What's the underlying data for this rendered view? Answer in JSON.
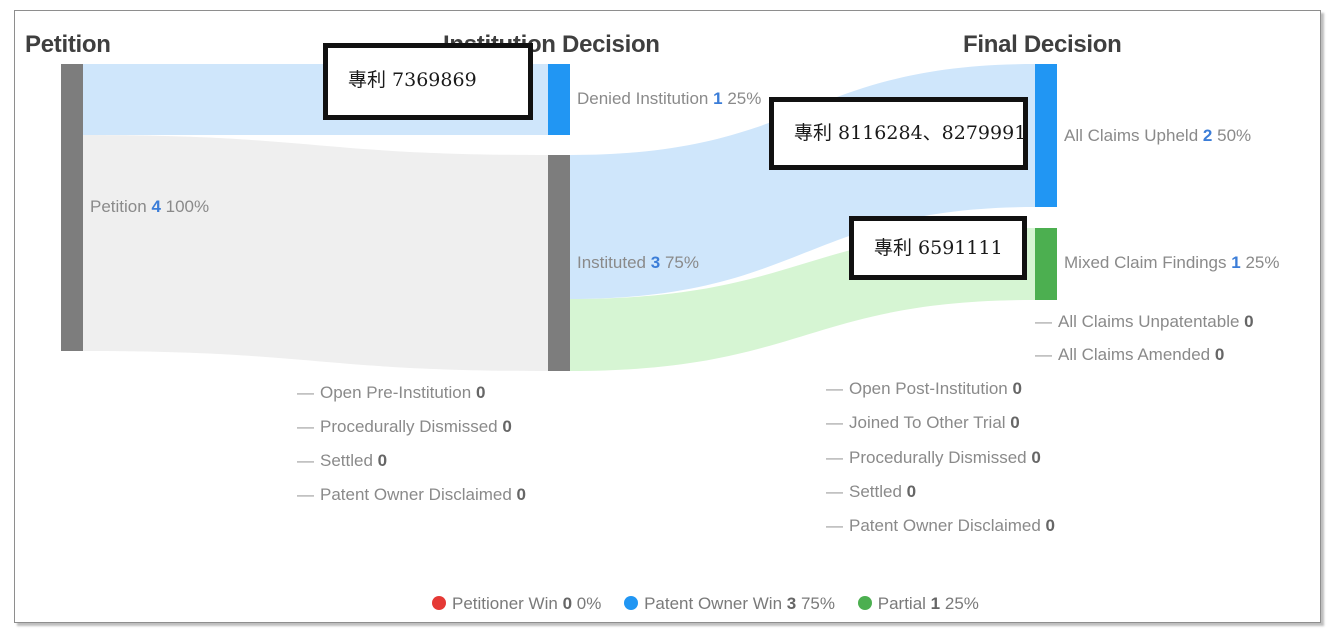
{
  "columns": {
    "petition": "Petition",
    "institution": "Institution Decision",
    "final": "Final Decision"
  },
  "colors": {
    "gray": "#7d7d7d",
    "blue": "#2196f3",
    "green": "#4caf50",
    "red": "#e53935",
    "flow_blue": "#cfe6fb",
    "flow_gray": "#efefef",
    "flow_green": "#d6f5d3"
  },
  "nodes": {
    "petition": {
      "label": "Petition",
      "count": "4",
      "pct": "100%"
    },
    "denied": {
      "label": "Denied Institution",
      "count": "1",
      "pct": "25%"
    },
    "instituted": {
      "label": "Instituted",
      "count": "3",
      "pct": "75%"
    },
    "upheld": {
      "label": "All Claims Upheld",
      "count": "2",
      "pct": "50%"
    },
    "mixed": {
      "label": "Mixed Claim Findings",
      "count": "1",
      "pct": "25%"
    }
  },
  "empty_institution": [
    {
      "label": "Open Pre-Institution",
      "count": "0"
    },
    {
      "label": "Procedurally Dismissed",
      "count": "0"
    },
    {
      "label": "Settled",
      "count": "0"
    },
    {
      "label": "Patent Owner Disclaimed",
      "count": "0"
    }
  ],
  "empty_final_right": [
    {
      "label": "All Claims Unpatentable",
      "count": "0"
    },
    {
      "label": "All Claims Amended",
      "count": "0"
    }
  ],
  "empty_final": [
    {
      "label": "Open Post-Institution",
      "count": "0"
    },
    {
      "label": "Joined To Other Trial",
      "count": "0"
    },
    {
      "label": "Procedurally Dismissed",
      "count": "0"
    },
    {
      "label": "Settled",
      "count": "0"
    },
    {
      "label": "Patent Owner Disclaimed",
      "count": "0"
    }
  ],
  "annotations": {
    "denied_patent": "專利 7369869",
    "upheld_patents": "專利 8116284、8279991",
    "mixed_patent": "專利 6591111"
  },
  "legend": [
    {
      "label": "Petitioner Win",
      "count": "0",
      "pct": "0%",
      "color": "#e53935"
    },
    {
      "label": "Patent Owner Win",
      "count": "3",
      "pct": "75%",
      "color": "#2196f3"
    },
    {
      "label": "Partial",
      "count": "1",
      "pct": "25%",
      "color": "#4caf50"
    }
  ]
}
